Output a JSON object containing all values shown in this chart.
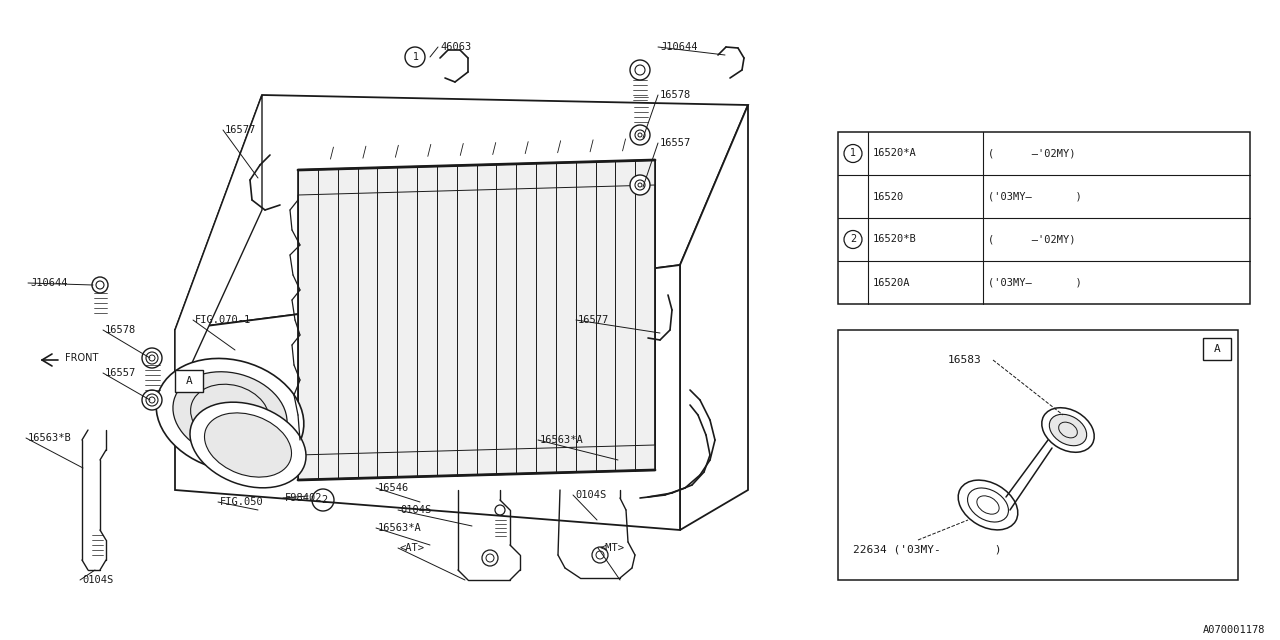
{
  "bg_color": "#ffffff",
  "line_color": "#1a1a1a",
  "fig_width": 12.8,
  "fig_height": 6.4,
  "dpi": 100,
  "watermark": "A070001178",
  "table1_rows": [
    [
      "1",
      "16520*A",
      "(      –'02MY)"
    ],
    [
      "",
      "16520",
      "('03MY–       )"
    ],
    [
      "2",
      "16520*B",
      "(      –'02MY)"
    ],
    [
      "",
      "16520A",
      "('03MY–       )"
    ]
  ],
  "table2_sensor_label": "16583",
  "table2_bottom_label": "22634 ('03MY-        )"
}
